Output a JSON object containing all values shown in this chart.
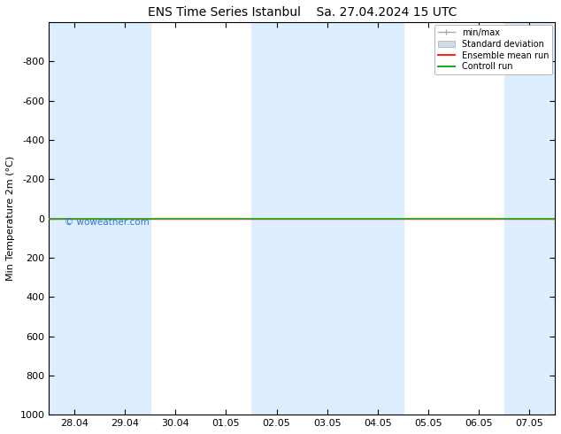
{
  "title_left": "ENS Time Series Istanbul",
  "title_right": "Sa. 27.04.2024 15 UTC",
  "ylabel": "Min Temperature 2m (°C)",
  "ylim_top": -1000,
  "ylim_bottom": 1000,
  "yticks": [
    -800,
    -600,
    -400,
    -200,
    0,
    200,
    400,
    600,
    800,
    1000
  ],
  "xtick_labels": [
    "28.04",
    "29.04",
    "30.04",
    "01.05",
    "02.05",
    "03.05",
    "04.05",
    "05.05",
    "06.05",
    "07.05"
  ],
  "xtick_positions": [
    0,
    1,
    2,
    3,
    4,
    5,
    6,
    7,
    8,
    9
  ],
  "xlim": [
    -0.5,
    9.5
  ],
  "blue_bands": [
    [
      -0.5,
      0.5
    ],
    [
      0.5,
      1.5
    ],
    [
      3.5,
      4.5
    ],
    [
      4.5,
      5.5
    ],
    [
      5.5,
      6.5
    ],
    [
      8.5,
      9.5
    ]
  ],
  "blue_band_color": "#ddeeff",
  "control_run_y": 0,
  "ensemble_mean_y": 0,
  "background_color": "#ffffff",
  "plot_bg_color": "#ffffff",
  "watermark": "© woweather.com",
  "watermark_color": "#3377cc",
  "legend_items": [
    "min/max",
    "Standard deviation",
    "Ensemble mean run",
    "Controll run"
  ],
  "title_fontsize": 10,
  "axis_label_fontsize": 8,
  "tick_fontsize": 8
}
